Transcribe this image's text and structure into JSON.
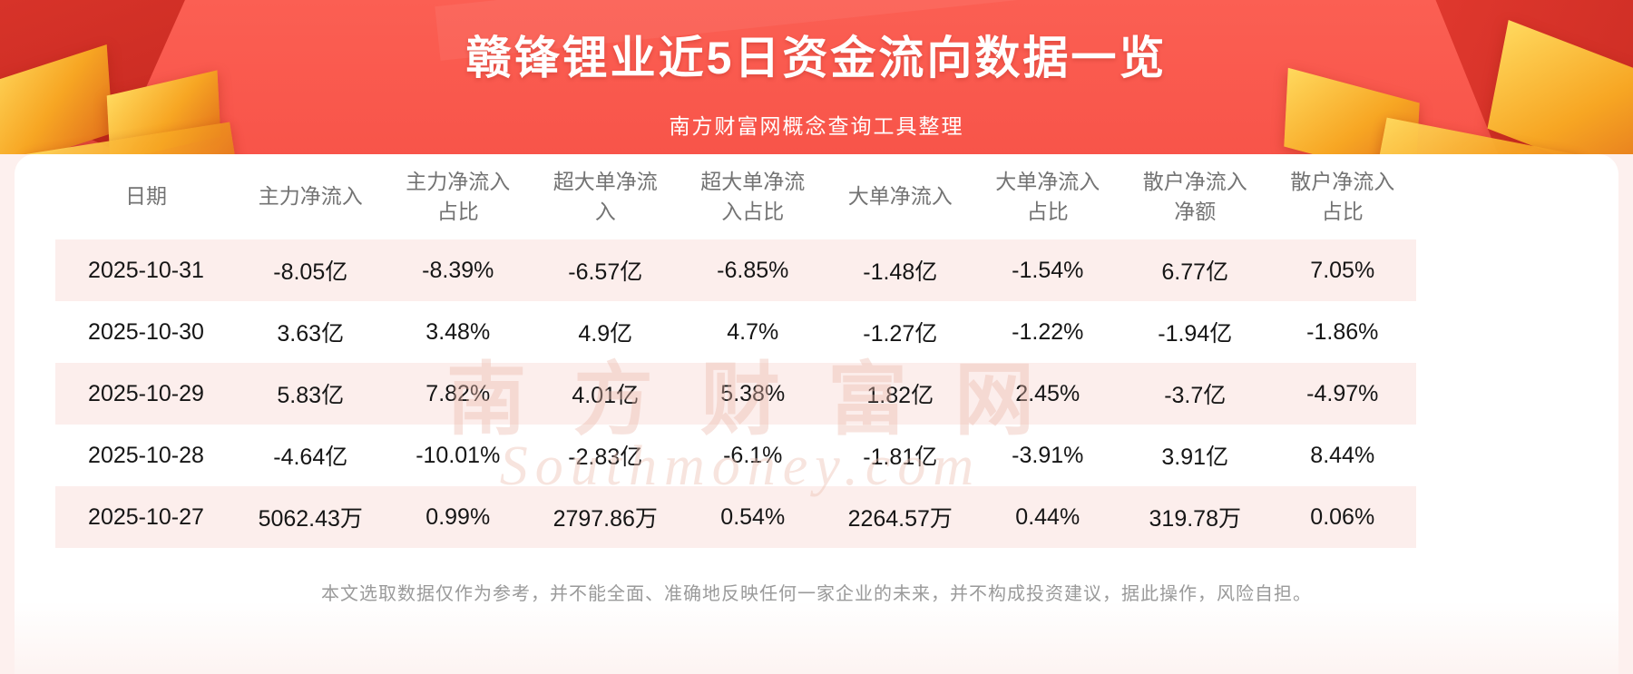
{
  "header": {
    "title": "赣锋锂业近5日资金流向数据一览",
    "subtitle": "南方财富网概念查询工具整理"
  },
  "watermark": {
    "cn": "南方财富网",
    "en": "Southmoney.com"
  },
  "footer": {
    "disclaimer": "本文选取数据仅作为参考，并不能全面、准确地反映任何一家企业的未来，并不构成投资建议，据此操作，风险自担。"
  },
  "colors": {
    "banner_red": "#f4453b",
    "gold_accent": "#f7a623",
    "row_alt_pink": "#fceeec",
    "header_text_gray": "#737373",
    "body_text": "#151515",
    "disclaimer_gray": "#9a9a9a"
  },
  "chart_data": {
    "type": "table",
    "title": "赣锋锂业近5日资金流向数据一览",
    "columns": [
      "日期",
      "主力净流入",
      "主力净流入占比",
      "超大单净流入",
      "超大单净流入占比",
      "大单净流入",
      "大单净流入占比",
      "散户净流入净额",
      "散户净流入占比"
    ],
    "rows": [
      [
        "2025-10-31",
        "-8.05亿",
        "-8.39%",
        "-6.57亿",
        "-6.85%",
        "-1.48亿",
        "-1.54%",
        "6.77亿",
        "7.05%"
      ],
      [
        "2025-10-30",
        "3.63亿",
        "3.48%",
        "4.9亿",
        "4.7%",
        "-1.27亿",
        "-1.22%",
        "-1.94亿",
        "-1.86%"
      ],
      [
        "2025-10-29",
        "5.83亿",
        "7.82%",
        "4.01亿",
        "5.38%",
        "1.82亿",
        "2.45%",
        "-3.7亿",
        "-4.97%"
      ],
      [
        "2025-10-28",
        "-4.64亿",
        "-10.01%",
        "-2.83亿",
        "-6.1%",
        "-1.81亿",
        "-3.91%",
        "3.91亿",
        "8.44%"
      ],
      [
        "2025-10-27",
        "5062.43万",
        "0.99%",
        "2797.86万",
        "0.54%",
        "2264.57万",
        "0.44%",
        "319.78万",
        "0.06%"
      ]
    ]
  }
}
